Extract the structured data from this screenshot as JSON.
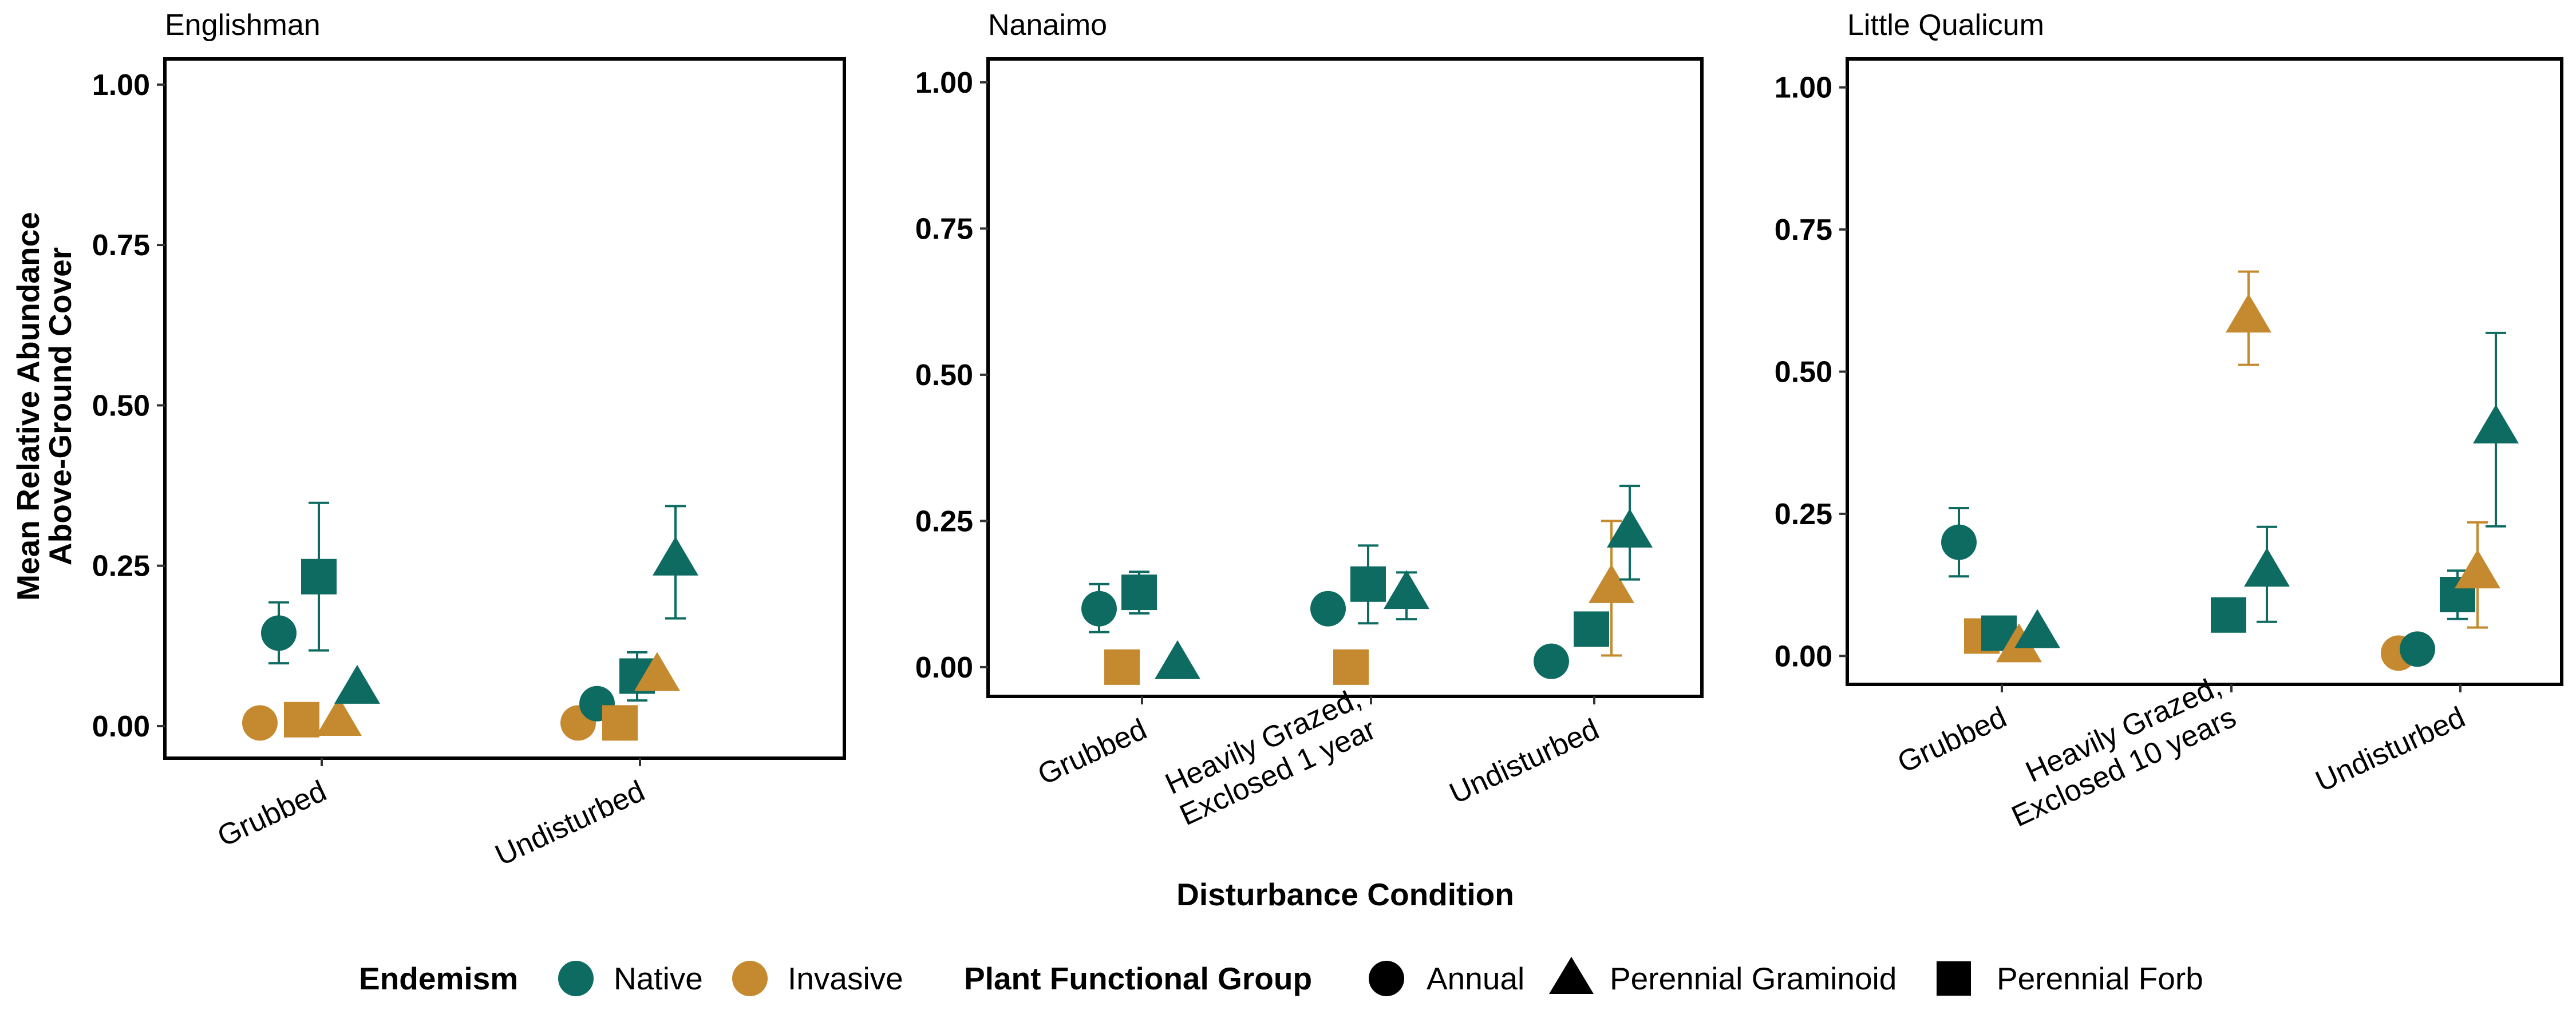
{
  "colors": {
    "native": "#0d6b61",
    "invasive": "#c58a2f"
  },
  "figure": {
    "ylabel_line1": "Mean Relative Abundance",
    "ylabel_line2": "Above-Ground Cover",
    "xlabel": "Disturbance Condition"
  },
  "legend": {
    "endemism_title": "Endemism",
    "native": "Native",
    "invasive": "Invasive",
    "pfg_title": "Plant Functional Group",
    "annual": "Annual",
    "graminoid": "Perennial Graminoid",
    "forb": "Perennial Forb"
  },
  "chart_data": [
    {
      "type": "scatter",
      "title": "Englishman",
      "categories": [
        "Grubbed",
        "Undisturbed"
      ],
      "ylim": [
        -0.05,
        1.04
      ],
      "yticks": [
        "0.00",
        "0.25",
        "0.50",
        "0.75",
        "1.00"
      ],
      "points": [
        {
          "cat": 0,
          "endemism": "Invasive",
          "group": "Annual",
          "y": 0.005
        },
        {
          "cat": 0,
          "endemism": "Native",
          "group": "Annual",
          "y": 0.145,
          "lo": 0.098,
          "hi": 0.193
        },
        {
          "cat": 0,
          "endemism": "Invasive",
          "group": "Perennial Forb",
          "y": 0.01
        },
        {
          "cat": 0,
          "endemism": "Native",
          "group": "Perennial Forb",
          "y": 0.233,
          "lo": 0.118,
          "hi": 0.348
        },
        {
          "cat": 0,
          "endemism": "Invasive",
          "group": "Perennial Graminoid",
          "y": 0.008
        },
        {
          "cat": 0,
          "endemism": "Native",
          "group": "Perennial Graminoid",
          "y": 0.058
        },
        {
          "cat": 1,
          "endemism": "Invasive",
          "group": "Annual",
          "y": 0.005
        },
        {
          "cat": 1,
          "endemism": "Native",
          "group": "Annual",
          "y": 0.035
        },
        {
          "cat": 1,
          "endemism": "Invasive",
          "group": "Perennial Forb",
          "y": 0.005
        },
        {
          "cat": 1,
          "endemism": "Native",
          "group": "Perennial Forb",
          "y": 0.078,
          "lo": 0.04,
          "hi": 0.115
        },
        {
          "cat": 1,
          "endemism": "Invasive",
          "group": "Perennial Graminoid",
          "y": 0.078
        },
        {
          "cat": 1,
          "endemism": "Native",
          "group": "Perennial Graminoid",
          "y": 0.258,
          "lo": 0.168,
          "hi": 0.343
        }
      ]
    },
    {
      "type": "scatter",
      "title": "Nanaimo",
      "categories": [
        "Grubbed",
        "Heavily Grazed,\nExclosed 1 year",
        "Undisturbed"
      ],
      "ylim": [
        -0.05,
        1.04
      ],
      "yticks": [
        "0.00",
        "0.25",
        "0.50",
        "0.75",
        "1.00"
      ],
      "points": [
        {
          "cat": 0,
          "endemism": "Native",
          "group": "Annual",
          "y": 0.1,
          "lo": 0.06,
          "hi": 0.142
        },
        {
          "cat": 0,
          "endemism": "Invasive",
          "group": "Perennial Forb",
          "y": 0.0
        },
        {
          "cat": 0,
          "endemism": "Native",
          "group": "Perennial Forb",
          "y": 0.128,
          "lo": 0.092,
          "hi": 0.163
        },
        {
          "cat": 0,
          "endemism": "Native",
          "group": "Perennial Graminoid",
          "y": 0.005
        },
        {
          "cat": 1,
          "endemism": "Native",
          "group": "Annual",
          "y": 0.1
        },
        {
          "cat": 1,
          "endemism": "Invasive",
          "group": "Perennial Forb",
          "y": 0.0
        },
        {
          "cat": 1,
          "endemism": "Native",
          "group": "Perennial Forb",
          "y": 0.142,
          "lo": 0.075,
          "hi": 0.208
        },
        {
          "cat": 1,
          "endemism": "Native",
          "group": "Perennial Graminoid",
          "y": 0.125,
          "lo": 0.082,
          "hi": 0.162
        },
        {
          "cat": 2,
          "endemism": "Native",
          "group": "Annual",
          "y": 0.01
        },
        {
          "cat": 2,
          "endemism": "Native",
          "group": "Perennial Forb",
          "y": 0.065
        },
        {
          "cat": 2,
          "endemism": "Invasive",
          "group": "Perennial Graminoid",
          "y": 0.135,
          "lo": 0.02,
          "hi": 0.25
        },
        {
          "cat": 2,
          "endemism": "Native",
          "group": "Perennial Graminoid",
          "y": 0.23,
          "lo": 0.15,
          "hi": 0.31
        }
      ]
    },
    {
      "type": "scatter",
      "title": "Little Qualicum",
      "categories": [
        "Grubbed",
        "Heavily Grazed,\nExclosed 10 years",
        "Undisturbed"
      ],
      "ylim": [
        -0.05,
        1.05
      ],
      "yticks": [
        "0.00",
        "0.25",
        "0.50",
        "0.75",
        "1.00"
      ],
      "points": [
        {
          "cat": 0,
          "endemism": "Native",
          "group": "Annual",
          "y": 0.2,
          "lo": 0.14,
          "hi": 0.26
        },
        {
          "cat": 0,
          "endemism": "Invasive",
          "group": "Perennial Forb",
          "y": 0.035
        },
        {
          "cat": 0,
          "endemism": "Native",
          "group": "Perennial Forb",
          "y": 0.04
        },
        {
          "cat": 0,
          "endemism": "Invasive",
          "group": "Perennial Graminoid",
          "y": 0.015
        },
        {
          "cat": 0,
          "endemism": "Native",
          "group": "Perennial Graminoid",
          "y": 0.04
        },
        {
          "cat": 1,
          "endemism": "Native",
          "group": "Perennial Forb",
          "y": 0.072
        },
        {
          "cat": 1,
          "endemism": "Invasive",
          "group": "Perennial Graminoid",
          "y": 0.595,
          "lo": 0.512,
          "hi": 0.676
        },
        {
          "cat": 1,
          "endemism": "Native",
          "group": "Perennial Graminoid",
          "y": 0.148,
          "lo": 0.06,
          "hi": 0.227
        },
        {
          "cat": 2,
          "endemism": "Invasive",
          "group": "Annual",
          "y": 0.005
        },
        {
          "cat": 2,
          "endemism": "Native",
          "group": "Annual",
          "y": 0.012
        },
        {
          "cat": 2,
          "endemism": "Native",
          "group": "Perennial Forb",
          "y": 0.108,
          "lo": 0.065,
          "hi": 0.15
        },
        {
          "cat": 2,
          "endemism": "Invasive",
          "group": "Perennial Graminoid",
          "y": 0.145,
          "lo": 0.05,
          "hi": 0.235
        },
        {
          "cat": 2,
          "endemism": "Native",
          "group": "Perennial Graminoid",
          "y": 0.4,
          "lo": 0.228,
          "hi": 0.568
        }
      ]
    }
  ]
}
